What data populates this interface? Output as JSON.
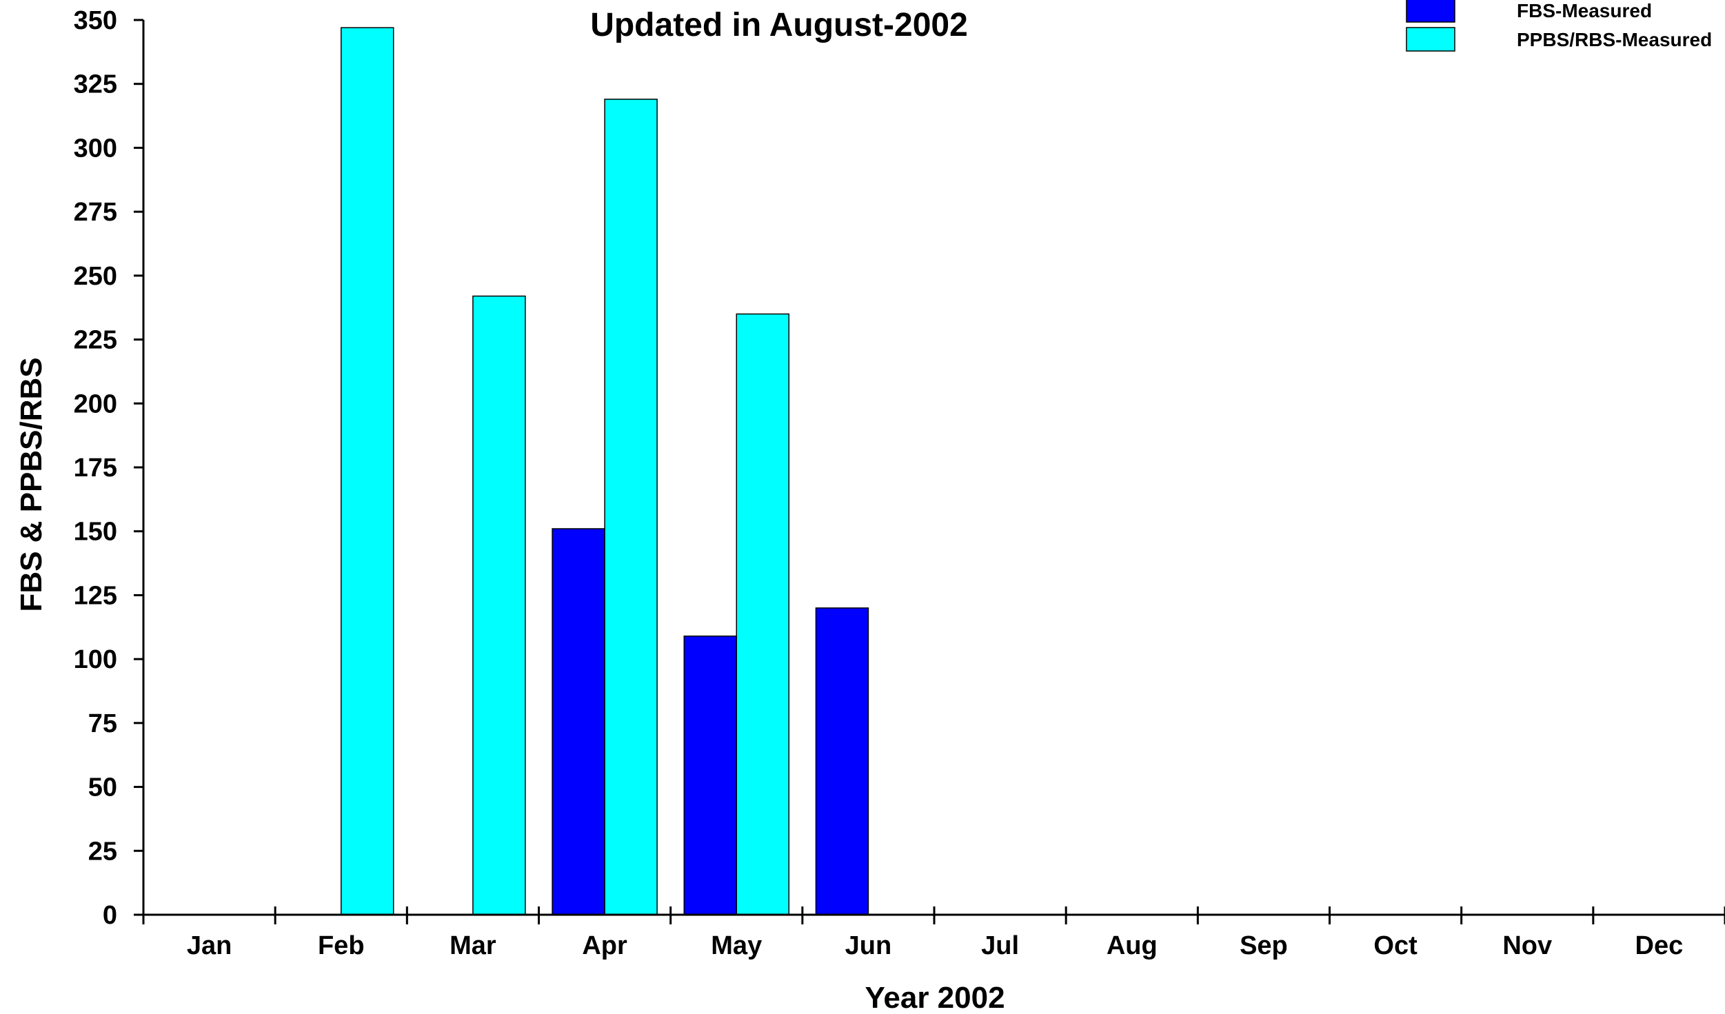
{
  "chart_data": {
    "type": "bar",
    "title": "Updated in August-2002",
    "xlabel": "Year 2002",
    "ylabel": "FBS & PPBS/RBS",
    "categories": [
      "Jan",
      "Feb",
      "Mar",
      "Apr",
      "May",
      "Jun",
      "Jul",
      "Aug",
      "Sep",
      "Oct",
      "Nov",
      "Dec"
    ],
    "series": [
      {
        "name": "FBS-Measured",
        "color": "#0000ff",
        "values": [
          null,
          null,
          null,
          151,
          109,
          120,
          null,
          null,
          null,
          null,
          null,
          null
        ]
      },
      {
        "name": "PPBS/RBS-Measured",
        "color": "#00ffff",
        "values": [
          null,
          347,
          242,
          319,
          235,
          null,
          null,
          null,
          null,
          null,
          null,
          null
        ]
      }
    ],
    "ylim": [
      0,
      350
    ],
    "yticks": [
      0,
      25,
      50,
      75,
      100,
      125,
      150,
      175,
      200,
      225,
      250,
      275,
      300,
      325,
      350
    ],
    "grid": false,
    "legend": "top-right"
  }
}
